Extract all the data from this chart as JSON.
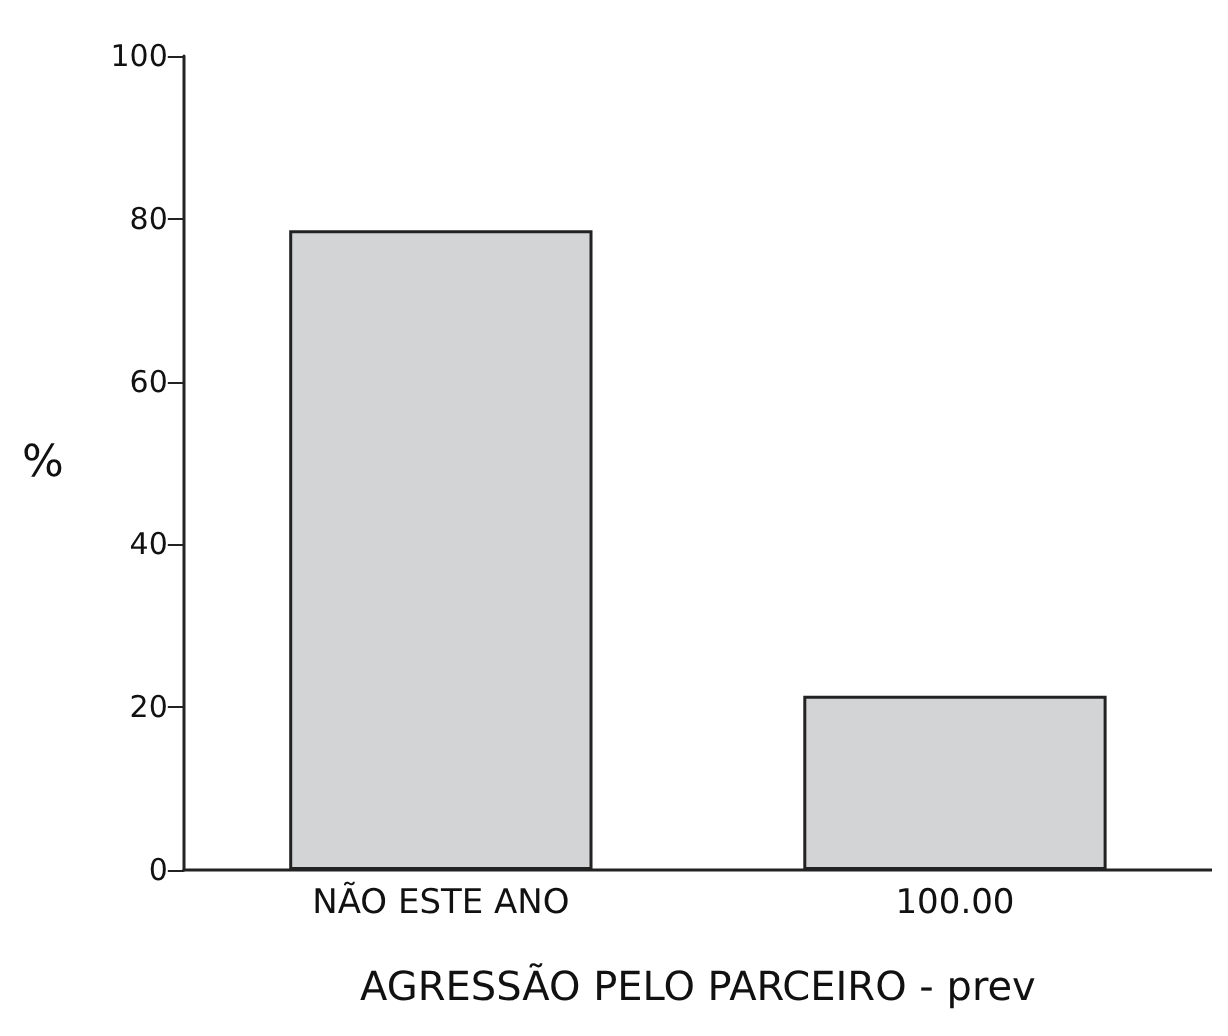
{
  "chart_data": {
    "type": "bar",
    "xlabel": "AGRESSÃO PELO PARCEIRO - prev",
    "ylabel": "%",
    "categories": [
      "NÃO ESTE ANO",
      "100.00"
    ],
    "values": [
      78.6,
      21.4
    ],
    "color": "#d3d4d6",
    "ylim": [
      0,
      100
    ],
    "yticks": [
      0,
      20,
      40,
      60,
      80,
      100
    ],
    "grid": false
  }
}
